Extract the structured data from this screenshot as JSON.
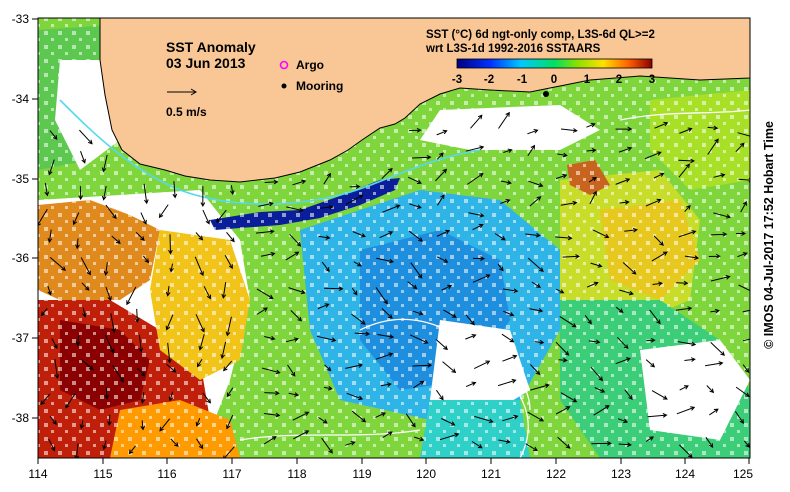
{
  "map": {
    "title": "SST Anomaly",
    "date": "03 Jun 2013",
    "scale_label": "0.5 m/s",
    "legend": {
      "argo": "Argo",
      "mooring": "Mooring"
    },
    "colorbar": {
      "title_line1": "SST (°C) 6d ngt-only comp, L3S-6d QL>=2",
      "title_line2": "wrt L3S-1d 1992-2016 SSTAARS",
      "ticks": [
        "-3",
        "-2",
        "-1",
        "0",
        "1",
        "2",
        "3"
      ]
    },
    "x_ticks": [
      "114",
      "115",
      "116",
      "117",
      "118",
      "119",
      "120",
      "121",
      "122",
      "123",
      "124",
      "125"
    ],
    "y_ticks": [
      "-33",
      "-34",
      "-35",
      "-36",
      "-37",
      "-38"
    ],
    "credit": "© IMOS 04-Jul-2017 17:52 Hobart Time"
  },
  "colors": {
    "land": "#f9c696",
    "argo": "#ff00ff",
    "mooring": "#000000"
  }
}
